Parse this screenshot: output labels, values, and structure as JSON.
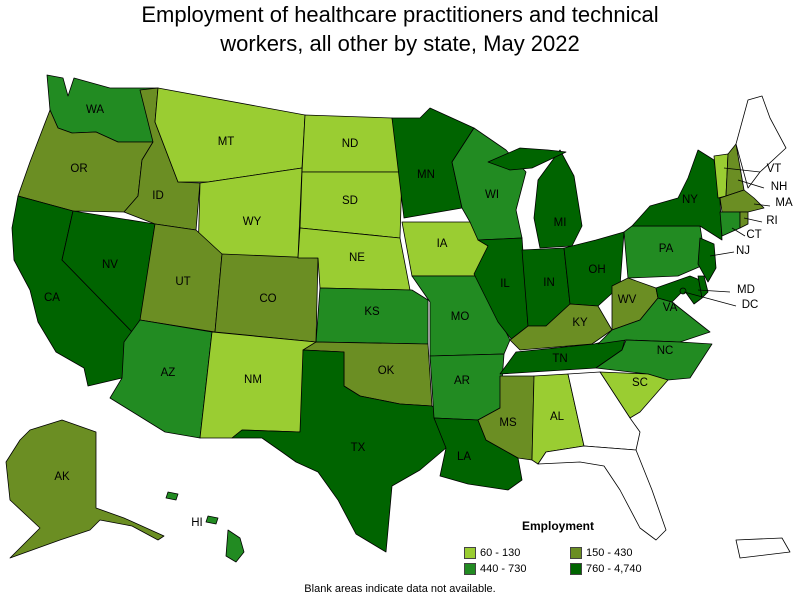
{
  "title_line1": "Employment of healthcare practitioners and technical",
  "title_line2": "workers, all other by state, May 2022",
  "legend": {
    "title": "Employment",
    "items": [
      {
        "label": "60 - 130",
        "color": "#9acd32"
      },
      {
        "label": "150 - 430",
        "color": "#6b8e23"
      },
      {
        "label": "440 - 730",
        "color": "#228b22"
      },
      {
        "label": "760 - 4,740",
        "color": "#006400"
      }
    ]
  },
  "footnote": "Blank areas indicate data not available.",
  "states": {
    "WA": {
      "label": "WA",
      "cls": 2
    },
    "OR": {
      "label": "OR",
      "cls": 1
    },
    "CA": {
      "label": "CA",
      "cls": 3
    },
    "NV": {
      "label": "NV",
      "cls": 3
    },
    "ID": {
      "label": "ID",
      "cls": 1
    },
    "MT": {
      "label": "MT",
      "cls": 0
    },
    "WY": {
      "label": "WY",
      "cls": 0
    },
    "UT": {
      "label": "UT",
      "cls": 1
    },
    "CO": {
      "label": "CO",
      "cls": 1
    },
    "AZ": {
      "label": "AZ",
      "cls": 2
    },
    "NM": {
      "label": "NM",
      "cls": 0
    },
    "ND": {
      "label": "ND",
      "cls": 0
    },
    "SD": {
      "label": "SD",
      "cls": 0
    },
    "NE": {
      "label": "NE",
      "cls": 0
    },
    "KS": {
      "label": "KS",
      "cls": 2
    },
    "OK": {
      "label": "OK",
      "cls": 1
    },
    "TX": {
      "label": "TX",
      "cls": 3
    },
    "MN": {
      "label": "MN",
      "cls": 3
    },
    "IA": {
      "label": "IA",
      "cls": 0
    },
    "MO": {
      "label": "MO",
      "cls": 2
    },
    "AR": {
      "label": "AR",
      "cls": 2
    },
    "LA": {
      "label": "LA",
      "cls": 3
    },
    "WI": {
      "label": "WI",
      "cls": 2
    },
    "IL": {
      "label": "IL",
      "cls": 3
    },
    "MI": {
      "label": "MI",
      "cls": 3
    },
    "IN": {
      "label": "IN",
      "cls": 3
    },
    "OH": {
      "label": "OH",
      "cls": 3
    },
    "KY": {
      "label": "KY",
      "cls": 1
    },
    "TN": {
      "label": "TN",
      "cls": 3
    },
    "MS": {
      "label": "MS",
      "cls": 1
    },
    "AL": {
      "label": "AL",
      "cls": 0
    },
    "WV": {
      "label": "WV",
      "cls": 1
    },
    "VA": {
      "label": "VA",
      "cls": 2
    },
    "NC": {
      "label": "NC",
      "cls": 2
    },
    "SC": {
      "label": "SC",
      "cls": 0
    },
    "PA": {
      "label": "PA",
      "cls": 2
    },
    "NY": {
      "label": "NY",
      "cls": 3
    },
    "VT": {
      "label": "VT",
      "cls": 0
    },
    "NH": {
      "label": "NH",
      "cls": 1
    },
    "MA": {
      "label": "MA",
      "cls": 1
    },
    "CT": {
      "label": "CT",
      "cls": 2
    },
    "RI": {
      "label": "RI",
      "cls": 1
    },
    "NJ": {
      "label": "NJ",
      "cls": 3
    },
    "MD": {
      "label": "MD",
      "cls": 3
    },
    "DE": {
      "label": "DE",
      "cls": 3
    },
    "DC": {
      "label": "DC",
      "cls": 3
    },
    "AK": {
      "label": "AK",
      "cls": 1
    },
    "HI": {
      "label": "HI",
      "cls": 2
    },
    "GA": {
      "label": "",
      "cls": -1
    },
    "FL": {
      "label": "",
      "cls": -1
    },
    "ME": {
      "label": "",
      "cls": -1
    },
    "PR": {
      "label": "",
      "cls": -1
    }
  }
}
